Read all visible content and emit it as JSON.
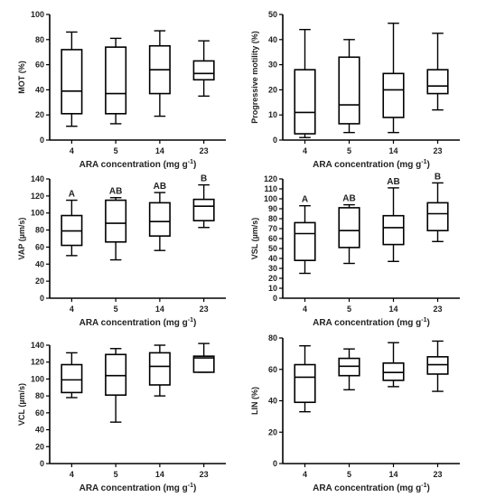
{
  "chart_data": [
    {
      "type": "box",
      "panel": "MOT",
      "ylabel": "MOT (%)",
      "xlabel": "ARA concentration (mg g",
      "xlabel_sup": "-1",
      "xlabel_tail": ")",
      "categories": [
        "4",
        "5",
        "14",
        "23"
      ],
      "ylim": [
        0,
        100
      ],
      "yticks": [
        0,
        20,
        40,
        60,
        80,
        100
      ],
      "boxes": [
        {
          "min": 11,
          "q1": 21,
          "median": 39,
          "q3": 72,
          "max": 86
        },
        {
          "min": 13,
          "q1": 21,
          "median": 37,
          "q3": 74,
          "max": 81
        },
        {
          "min": 19,
          "q1": 37,
          "median": 56,
          "q3": 75,
          "max": 87
        },
        {
          "min": 35,
          "q1": 48,
          "median": 53,
          "q3": 63,
          "max": 79
        }
      ],
      "letters": []
    },
    {
      "type": "box",
      "panel": "Progressive motility",
      "ylabel": "Progressive motility (%)",
      "xlabel": "ARA concentration (mg g",
      "xlabel_sup": "-1",
      "xlabel_tail": ")",
      "categories": [
        "4",
        "5",
        "14",
        "23"
      ],
      "ylim": [
        0,
        50
      ],
      "yticks": [
        0,
        10,
        20,
        30,
        40,
        50
      ],
      "boxes": [
        {
          "min": 1,
          "q1": 2.5,
          "median": 11,
          "q3": 28,
          "max": 44
        },
        {
          "min": 3,
          "q1": 6.5,
          "median": 14,
          "q3": 33,
          "max": 40
        },
        {
          "min": 3,
          "q1": 9,
          "median": 20,
          "q3": 26.5,
          "max": 46.5
        },
        {
          "min": 12,
          "q1": 18.5,
          "median": 21.5,
          "q3": 28,
          "max": 42.5
        }
      ],
      "letters": []
    },
    {
      "type": "box",
      "panel": "VAP",
      "ylabel": "VAP (µm/s)",
      "xlabel": "ARA concentration (mg g",
      "xlabel_sup": "-1",
      "xlabel_tail": ")",
      "categories": [
        "4",
        "5",
        "14",
        "23"
      ],
      "ylim": [
        0,
        140
      ],
      "yticks": [
        0,
        20,
        40,
        60,
        80,
        100,
        120,
        140
      ],
      "boxes": [
        {
          "min": 50,
          "q1": 62,
          "median": 79,
          "q3": 97,
          "max": 115
        },
        {
          "min": 45,
          "q1": 66,
          "median": 88,
          "q3": 115,
          "max": 118
        },
        {
          "min": 56,
          "q1": 73,
          "median": 90,
          "q3": 112,
          "max": 124
        },
        {
          "min": 83,
          "q1": 91,
          "median": 108,
          "q3": 116,
          "max": 133
        }
      ],
      "letters": [
        "A",
        "AB",
        "AB",
        "B"
      ]
    },
    {
      "type": "box",
      "panel": "VSL",
      "ylabel": "VSL (µm/s)",
      "xlabel": "ARA concentration (mg g",
      "xlabel_sup": "-1",
      "xlabel_tail": ")",
      "categories": [
        "4",
        "5",
        "14",
        "23"
      ],
      "ylim": [
        0,
        120
      ],
      "yticks": [
        0,
        10,
        20,
        30,
        40,
        50,
        60,
        70,
        80,
        90,
        100,
        110,
        120
      ],
      "boxes": [
        {
          "min": 25,
          "q1": 38,
          "median": 65,
          "q3": 76,
          "max": 93
        },
        {
          "min": 35,
          "q1": 51,
          "median": 68,
          "q3": 91,
          "max": 94
        },
        {
          "min": 37,
          "q1": 54,
          "median": 71,
          "q3": 83,
          "max": 111
        },
        {
          "min": 57,
          "q1": 68,
          "median": 85,
          "q3": 96,
          "max": 116
        }
      ],
      "letters": [
        "A",
        "AB",
        "AB",
        "B"
      ]
    },
    {
      "type": "box",
      "panel": "VCL",
      "ylabel": "VCL (µm/s)",
      "xlabel": "ARA concentration (mg g",
      "xlabel_sup": "-1",
      "xlabel_tail": ")",
      "categories": [
        "4",
        "5",
        "14",
        "23"
      ],
      "ylim": [
        0,
        140
      ],
      "yticks": [
        0,
        20,
        40,
        60,
        80,
        100,
        120,
        140
      ],
      "boxes": [
        {
          "min": 78,
          "q1": 84,
          "median": 99,
          "q3": 117,
          "max": 131
        },
        {
          "min": 49,
          "q1": 81,
          "median": 104,
          "q3": 129,
          "max": 136
        },
        {
          "min": 80,
          "q1": 93,
          "median": 115,
          "q3": 131,
          "max": 140
        },
        {
          "min": 108,
          "q1": 108,
          "median": 125,
          "q3": 127,
          "max": 142
        }
      ],
      "letters": []
    },
    {
      "type": "box",
      "panel": "LIN",
      "ylabel": "LIN (%)",
      "xlabel": "ARA concentration (mg g",
      "xlabel_sup": "-1",
      "xlabel_tail": ")",
      "categories": [
        "4",
        "5",
        "14",
        "23"
      ],
      "ylim": [
        0,
        80
      ],
      "yticks": [
        0,
        20,
        40,
        60,
        80
      ],
      "boxes": [
        {
          "min": 33,
          "q1": 39,
          "median": 55,
          "q3": 63,
          "max": 75
        },
        {
          "min": 47,
          "q1": 56,
          "median": 62,
          "q3": 67,
          "max": 73
        },
        {
          "min": 49,
          "q1": 53,
          "median": 58,
          "q3": 64,
          "max": 77
        },
        {
          "min": 46,
          "q1": 57,
          "median": 63,
          "q3": 68,
          "max": 78
        }
      ],
      "letters": []
    }
  ]
}
